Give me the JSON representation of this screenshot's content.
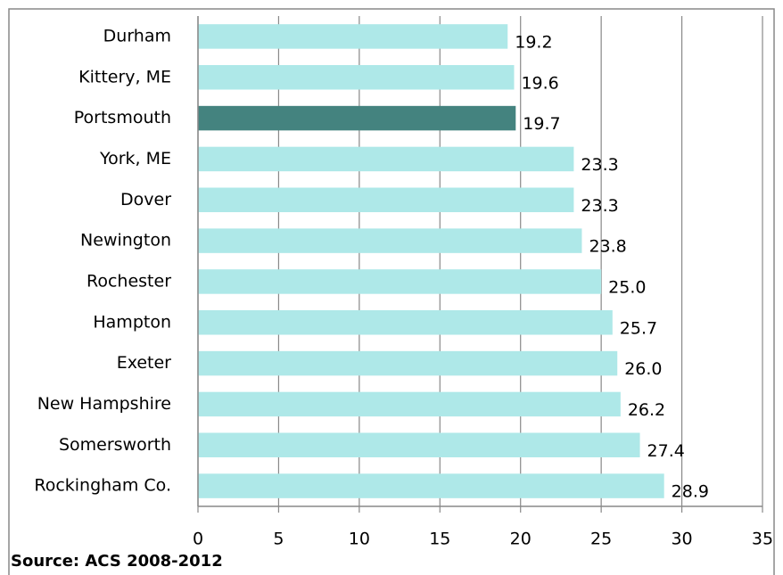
{
  "chart_data": {
    "type": "barh",
    "categories": [
      "Durham",
      "Kittery, ME",
      "Portsmouth",
      "York, ME",
      "Dover",
      "Newington",
      "Rochester",
      "Hampton",
      "Exeter",
      "New Hampshire",
      "Somersworth",
      "Rockingham Co."
    ],
    "values": [
      19.2,
      19.6,
      19.7,
      23.3,
      23.3,
      23.8,
      25.0,
      25.7,
      26.0,
      26.2,
      27.4,
      28.9
    ],
    "value_labels": [
      "19.2",
      "19.6",
      "19.7",
      "23.3",
      "23.3",
      "23.8",
      "25.0",
      "25.7",
      "26.0",
      "26.2",
      "27.4",
      "28.9"
    ],
    "colors": [
      "#aee8e8",
      "#aee8e8",
      "#44837f",
      "#aee8e8",
      "#aee8e8",
      "#aee8e8",
      "#aee8e8",
      "#aee8e8",
      "#aee8e8",
      "#aee8e8",
      "#aee8e8",
      "#aee8e8"
    ],
    "xlim": [
      0,
      35
    ],
    "xticks": [
      0,
      5,
      10,
      15,
      20,
      25,
      30,
      35
    ],
    "grid": true,
    "source": "Source: ACS 2008-2012"
  }
}
